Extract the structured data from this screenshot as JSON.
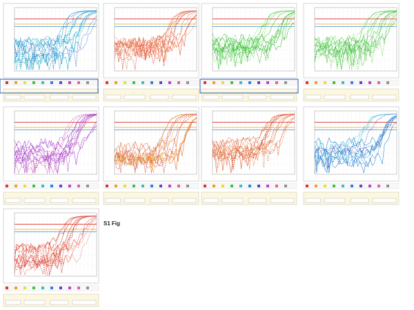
{
  "figure_label": "S1 Fig"
}
